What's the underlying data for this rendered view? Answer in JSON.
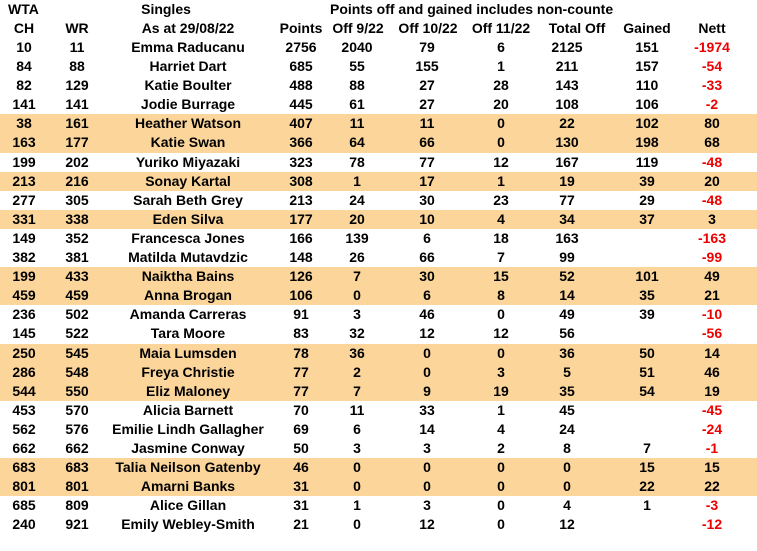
{
  "header": {
    "wta_label": "WTA",
    "ch_label": "CH",
    "wr_label": "WR",
    "singles_label": "Singles",
    "as_at_label": "As at 29/08/22",
    "points_label": "Points",
    "note": "Points off and gained includes non-counte",
    "off_9_label": "Off 9/22",
    "off_10_label": "Off 10/22",
    "off_11_label": "Off 11/22",
    "total_off_label": "Total Off",
    "gained_label": "Gained",
    "nett_label": "Nett"
  },
  "colors": {
    "highlight": "#fbd59a",
    "negative": "#ee0000"
  },
  "rows": [
    {
      "ch": "10",
      "wr": "11",
      "name": "Emma Raducanu",
      "points": "2756",
      "off9": "2040",
      "off10": "79",
      "off11": "6",
      "total": "2125",
      "gained": "151",
      "nett": "-1974",
      "hl": false
    },
    {
      "ch": "84",
      "wr": "88",
      "name": "Harriet Dart",
      "points": "685",
      "off9": "55",
      "off10": "155",
      "off11": "1",
      "total": "211",
      "gained": "157",
      "nett": "-54",
      "hl": false
    },
    {
      "ch": "82",
      "wr": "129",
      "name": "Katie Boulter",
      "points": "488",
      "off9": "88",
      "off10": "27",
      "off11": "28",
      "total": "143",
      "gained": "110",
      "nett": "-33",
      "hl": false
    },
    {
      "ch": "141",
      "wr": "141",
      "name": "Jodie Burrage",
      "points": "445",
      "off9": "61",
      "off10": "27",
      "off11": "20",
      "total": "108",
      "gained": "106",
      "nett": "-2",
      "hl": false
    },
    {
      "ch": "38",
      "wr": "161",
      "name": "Heather Watson",
      "points": "407",
      "off9": "11",
      "off10": "11",
      "off11": "0",
      "total": "22",
      "gained": "102",
      "nett": "80",
      "hl": true
    },
    {
      "ch": "163",
      "wr": "177",
      "name": "Katie Swan",
      "points": "366",
      "off9": "64",
      "off10": "66",
      "off11": "0",
      "total": "130",
      "gained": "198",
      "nett": "68",
      "hl": true
    },
    {
      "ch": "199",
      "wr": "202",
      "name": "Yuriko Miyazaki",
      "points": "323",
      "off9": "78",
      "off10": "77",
      "off11": "12",
      "total": "167",
      "gained": "119",
      "nett": "-48",
      "hl": false
    },
    {
      "ch": "213",
      "wr": "216",
      "name": "Sonay Kartal",
      "points": "308",
      "off9": "1",
      "off10": "17",
      "off11": "1",
      "total": "19",
      "gained": "39",
      "nett": "20",
      "hl": true
    },
    {
      "ch": "277",
      "wr": "305",
      "name": "Sarah Beth Grey",
      "points": "213",
      "off9": "24",
      "off10": "30",
      "off11": "23",
      "total": "77",
      "gained": "29",
      "nett": "-48",
      "hl": false
    },
    {
      "ch": "331",
      "wr": "338",
      "name": "Eden Silva",
      "points": "177",
      "off9": "20",
      "off10": "10",
      "off11": "4",
      "total": "34",
      "gained": "37",
      "nett": "3",
      "hl": true
    },
    {
      "ch": "149",
      "wr": "352",
      "name": "Francesca Jones",
      "points": "166",
      "off9": "139",
      "off10": "6",
      "off11": "18",
      "total": "163",
      "gained": "",
      "nett": "-163",
      "hl": false
    },
    {
      "ch": "382",
      "wr": "381",
      "name": "Matilda Mutavdzic",
      "points": "148",
      "off9": "26",
      "off10": "66",
      "off11": "7",
      "total": "99",
      "gained": "",
      "nett": "-99",
      "hl": false
    },
    {
      "ch": "199",
      "wr": "433",
      "name": "Naiktha Bains",
      "points": "126",
      "off9": "7",
      "off10": "30",
      "off11": "15",
      "total": "52",
      "gained": "101",
      "nett": "49",
      "hl": true
    },
    {
      "ch": "459",
      "wr": "459",
      "name": "Anna Brogan",
      "points": "106",
      "off9": "0",
      "off10": "6",
      "off11": "8",
      "total": "14",
      "gained": "35",
      "nett": "21",
      "hl": true
    },
    {
      "ch": "236",
      "wr": "502",
      "name": "Amanda Carreras",
      "points": "91",
      "off9": "3",
      "off10": "46",
      "off11": "0",
      "total": "49",
      "gained": "39",
      "nett": "-10",
      "hl": false
    },
    {
      "ch": "145",
      "wr": "522",
      "name": "Tara Moore",
      "points": "83",
      "off9": "32",
      "off10": "12",
      "off11": "12",
      "total": "56",
      "gained": "",
      "nett": "-56",
      "hl": false
    },
    {
      "ch": "250",
      "wr": "545",
      "name": "Maia Lumsden",
      "points": "78",
      "off9": "36",
      "off10": "0",
      "off11": "0",
      "total": "36",
      "gained": "50",
      "nett": "14",
      "hl": true
    },
    {
      "ch": "286",
      "wr": "548",
      "name": "Freya Christie",
      "points": "77",
      "off9": "2",
      "off10": "0",
      "off11": "3",
      "total": "5",
      "gained": "51",
      "nett": "46",
      "hl": true
    },
    {
      "ch": "544",
      "wr": "550",
      "name": "Eliz Maloney",
      "points": "77",
      "off9": "7",
      "off10": "9",
      "off11": "19",
      "total": "35",
      "gained": "54",
      "nett": "19",
      "hl": true
    },
    {
      "ch": "453",
      "wr": "570",
      "name": "Alicia Barnett",
      "points": "70",
      "off9": "11",
      "off10": "33",
      "off11": "1",
      "total": "45",
      "gained": "",
      "nett": "-45",
      "hl": false
    },
    {
      "ch": "562",
      "wr": "576",
      "name": "Emilie Lindh Gallagher",
      "points": "69",
      "off9": "6",
      "off10": "14",
      "off11": "4",
      "total": "24",
      "gained": "",
      "nett": "-24",
      "hl": false
    },
    {
      "ch": "662",
      "wr": "662",
      "name": "Jasmine Conway",
      "points": "50",
      "off9": "3",
      "off10": "3",
      "off11": "2",
      "total": "8",
      "gained": "7",
      "nett": "-1",
      "hl": false
    },
    {
      "ch": "683",
      "wr": "683",
      "name": "Talia Neilson Gatenby",
      "points": "46",
      "off9": "0",
      "off10": "0",
      "off11": "0",
      "total": "0",
      "gained": "15",
      "nett": "15",
      "hl": true
    },
    {
      "ch": "801",
      "wr": "801",
      "name": "Amarni Banks",
      "points": "31",
      "off9": "0",
      "off10": "0",
      "off11": "0",
      "total": "0",
      "gained": "22",
      "nett": "22",
      "hl": true
    },
    {
      "ch": "685",
      "wr": "809",
      "name": "Alice Gillan",
      "points": "31",
      "off9": "1",
      "off10": "3",
      "off11": "0",
      "total": "4",
      "gained": "1",
      "nett": "-3",
      "hl": false
    },
    {
      "ch": "240",
      "wr": "921",
      "name": "Emily Webley-Smith",
      "points": "21",
      "off9": "0",
      "off10": "12",
      "off11": "0",
      "total": "12",
      "gained": "",
      "nett": "-12",
      "hl": false
    }
  ]
}
